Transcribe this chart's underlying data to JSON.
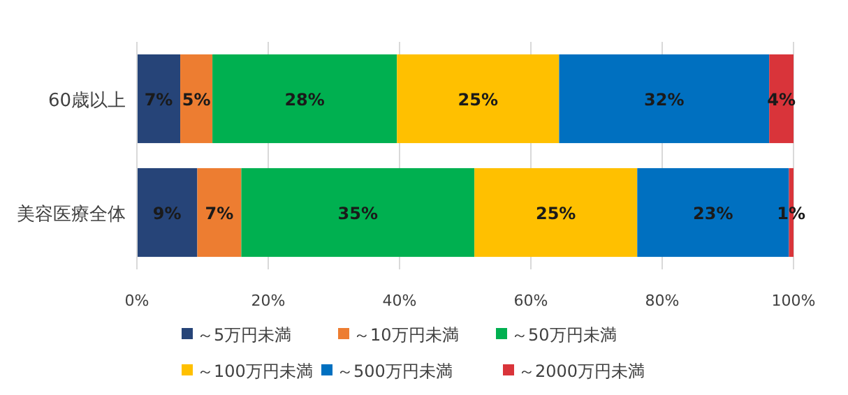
{
  "chart_data": {
    "type": "bar",
    "orientation": "horizontal",
    "stacked": true,
    "categories": [
      "60歳以上",
      "美容医療全体"
    ],
    "series": [
      {
        "name": "～5万円未満",
        "color": "#264478",
        "values": [
          6.6,
          9.2
        ],
        "value_labels": [
          "7%",
          "9%"
        ]
      },
      {
        "name": "～10万円未満",
        "color": "#ed7d31",
        "values": [
          4.9,
          6.7
        ],
        "value_labels": [
          "5%",
          "7%"
        ]
      },
      {
        "name": "～50万円未満",
        "color": "#00b050",
        "values": [
          28.1,
          35.5
        ],
        "value_labels": [
          "28%",
          "35%"
        ]
      },
      {
        "name": "～100万円未満",
        "color": "#ffc000",
        "values": [
          24.7,
          24.8
        ],
        "value_labels": [
          "25%",
          "25%"
        ]
      },
      {
        "name": "～500万円未満",
        "color": "#0070c0",
        "values": [
          32.0,
          23.1
        ],
        "value_labels": [
          "32%",
          "23%"
        ]
      },
      {
        "name": "～2000万円未満",
        "color": "#d9343a",
        "values": [
          3.7,
          0.7
        ],
        "value_labels": [
          "4%",
          "1%"
        ]
      }
    ],
    "xlim": [
      0,
      100
    ],
    "xticks": [
      {
        "value": 0,
        "label": "0%"
      },
      {
        "value": 20,
        "label": "20%"
      },
      {
        "value": 40,
        "label": "40%"
      },
      {
        "value": 60,
        "label": "60%"
      },
      {
        "value": 80,
        "label": "80%"
      },
      {
        "value": 100,
        "label": "100%"
      }
    ],
    "grid": "x",
    "legend": "bottom"
  }
}
